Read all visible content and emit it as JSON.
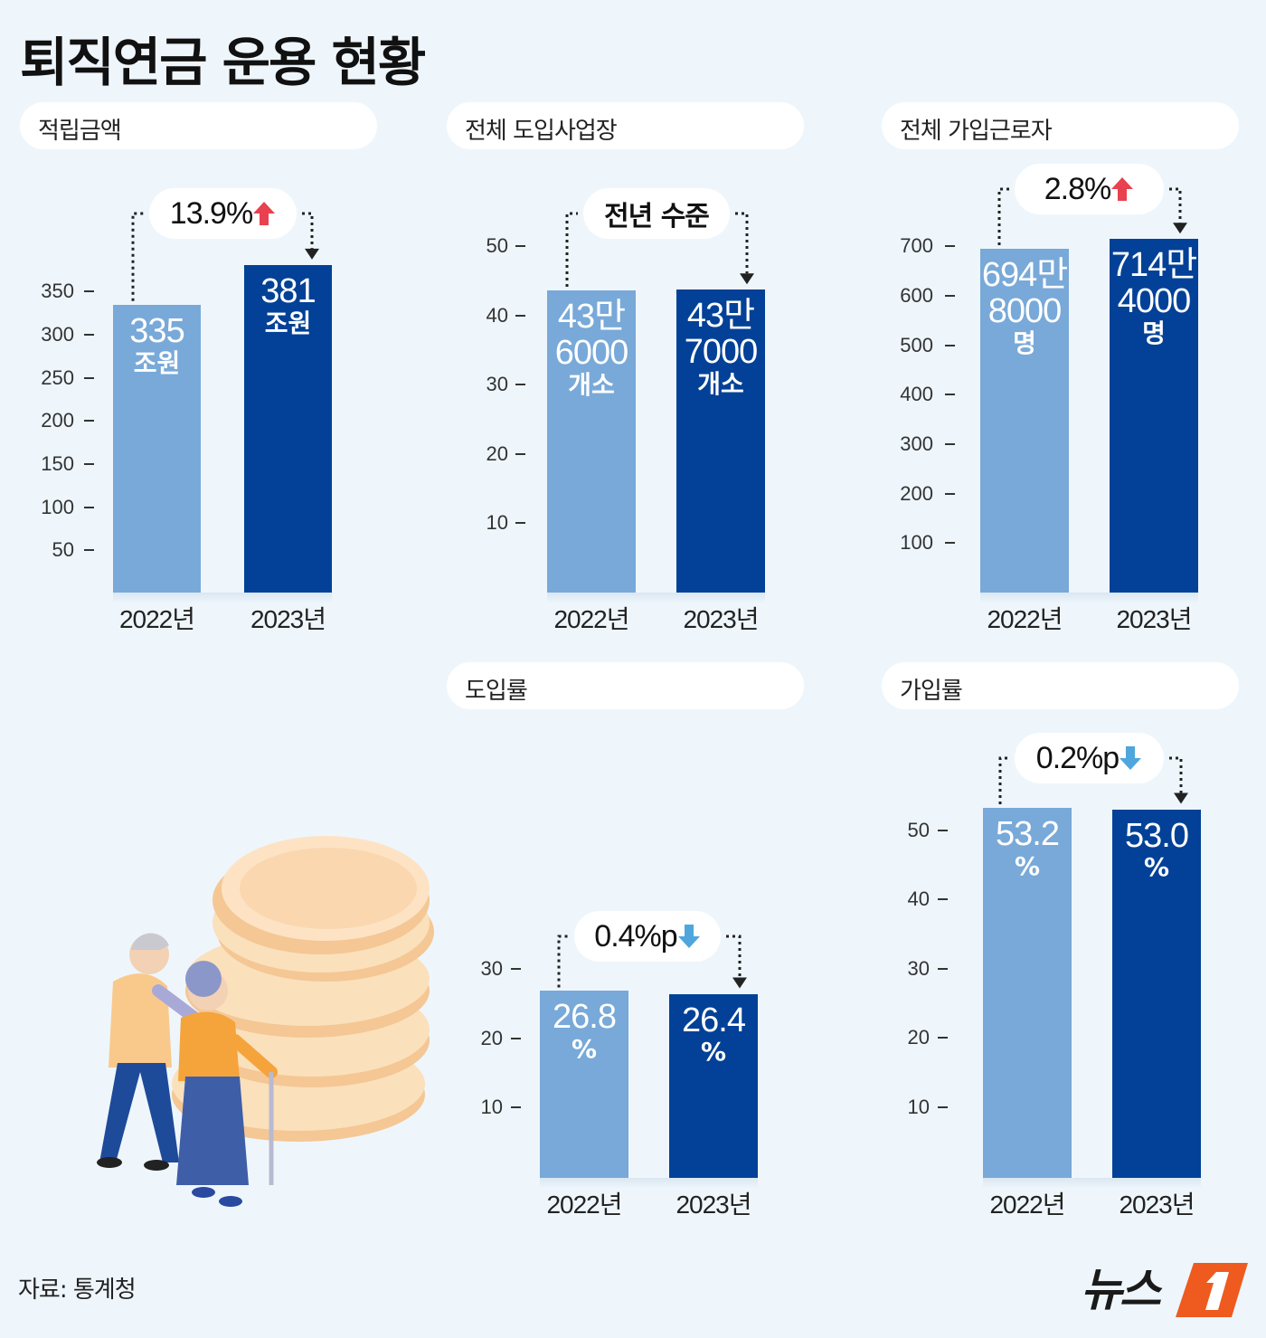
{
  "title": "퇴직연금 운용 현황",
  "source": "자료: 통계청",
  "logo_text": "뉴스1",
  "colors": {
    "bar_2022": "#78a9d8",
    "bar_2023": "#024197",
    "up_arrow": "#e8414f",
    "down_arrow": "#4ea6dc",
    "background": "#eef6fc"
  },
  "chart_data": [
    {
      "type": "bar",
      "title": "적립금액",
      "categories": [
        "2022년",
        "2023년"
      ],
      "values": [
        335,
        381
      ],
      "unit": "조원",
      "bar_labels": [
        [
          "335",
          "조원"
        ],
        [
          "381",
          "조원"
        ]
      ],
      "yticks": [
        50,
        100,
        150,
        200,
        250,
        300,
        350
      ],
      "change": {
        "text": "13.9%",
        "direction": "up",
        "icon": "arrow-up-icon"
      }
    },
    {
      "type": "bar",
      "title": "전체 도입사업장",
      "categories": [
        "2022년",
        "2023년"
      ],
      "values": [
        43.6,
        43.7
      ],
      "unit": "만 개소",
      "bar_labels": [
        [
          "43만",
          "6000",
          "개소"
        ],
        [
          "43만",
          "7000",
          "개소"
        ]
      ],
      "yticks": [
        10,
        20,
        30,
        40,
        50
      ],
      "change": {
        "text": "전년 수준",
        "direction": "none"
      }
    },
    {
      "type": "bar",
      "title": "전체 가입근로자",
      "categories": [
        "2022년",
        "2023년"
      ],
      "values": [
        694.8,
        714.4
      ],
      "unit": "만 명",
      "bar_labels": [
        [
          "694만",
          "8000",
          "명"
        ],
        [
          "714만",
          "4000",
          "명"
        ]
      ],
      "yticks": [
        100,
        200,
        300,
        400,
        500,
        600,
        700
      ],
      "change": {
        "text": "2.8%",
        "direction": "up",
        "icon": "arrow-up-icon"
      }
    },
    {
      "type": "bar",
      "title": "도입률",
      "categories": [
        "2022년",
        "2023년"
      ],
      "values": [
        26.8,
        26.4
      ],
      "unit": "%",
      "bar_labels": [
        [
          "26.8",
          "%"
        ],
        [
          "26.4",
          "%"
        ]
      ],
      "yticks": [
        10,
        20,
        30
      ],
      "change": {
        "text": "0.4%p",
        "direction": "down",
        "icon": "arrow-down-icon"
      }
    },
    {
      "type": "bar",
      "title": "가입률",
      "categories": [
        "2022년",
        "2023년"
      ],
      "values": [
        53.2,
        53.0
      ],
      "unit": "%",
      "bar_labels": [
        [
          "53.2",
          "%"
        ],
        [
          "53.0",
          "%"
        ]
      ],
      "yticks": [
        10,
        20,
        30,
        40,
        50
      ],
      "change": {
        "text": "0.2%p",
        "direction": "down",
        "icon": "arrow-down-icon"
      }
    }
  ]
}
